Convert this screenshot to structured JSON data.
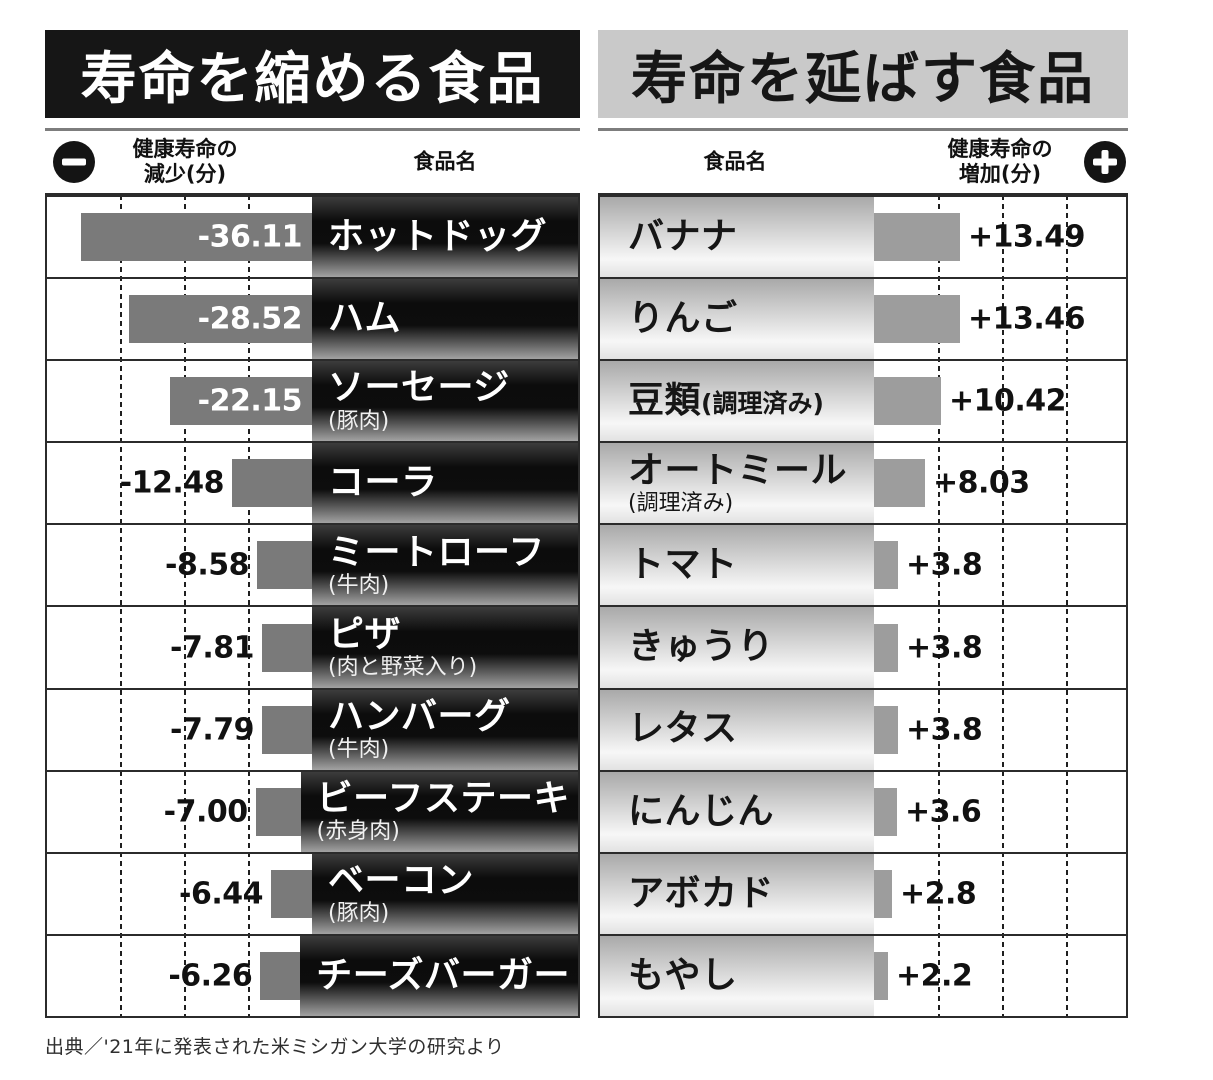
{
  "colors": {
    "left_title_bg": "#161616",
    "left_title_text": "#ffffff",
    "right_title_bg": "#c9c9c9",
    "right_title_text": "#161616",
    "left_bar": "#7a7a7a",
    "right_bar": "#9d9d9d",
    "grid_line": "#1f1f1f",
    "table_border": "#2b2b2b"
  },
  "left_chart": {
    "title": "寿命を縮める食品",
    "sign_icon": "minus-circle",
    "value_header_line1": "健康寿命の",
    "value_header_line2": "減少(分)",
    "name_header": "食品名",
    "rows": [
      {
        "name": "ホットドッグ",
        "sub": "",
        "sub_inline": false,
        "value": -36.11,
        "value_label": "-36.11"
      },
      {
        "name": "ハム",
        "sub": "",
        "sub_inline": false,
        "value": -28.52,
        "value_label": "-28.52"
      },
      {
        "name": "ソーセージ",
        "sub": "(豚肉)",
        "sub_inline": false,
        "value": -22.15,
        "value_label": "-22.15"
      },
      {
        "name": "コーラ",
        "sub": "",
        "sub_inline": false,
        "value": -12.48,
        "value_label": "-12.48"
      },
      {
        "name": "ミートローフ",
        "sub": "(牛肉)",
        "sub_inline": false,
        "value": -8.58,
        "value_label": "-8.58"
      },
      {
        "name": "ピザ",
        "sub": "(肉と野菜入り)",
        "sub_inline": false,
        "value": -7.81,
        "value_label": "-7.81"
      },
      {
        "name": "ハンバーグ",
        "sub": "(牛肉)",
        "sub_inline": false,
        "value": -7.79,
        "value_label": "-7.79"
      },
      {
        "name": "ビーフステーキ",
        "sub": "(赤身肉)",
        "sub_inline": false,
        "value": -7.0,
        "value_label": "-7.00"
      },
      {
        "name": "ベーコン",
        "sub": "(豚肉)",
        "sub_inline": false,
        "value": -6.44,
        "value_label": "-6.44"
      },
      {
        "name": "チーズバーガー",
        "sub": "",
        "sub_inline": false,
        "value": -6.26,
        "value_label": "-6.26"
      }
    ]
  },
  "right_chart": {
    "title": "寿命を延ばす食品",
    "sign_icon": "plus-circle",
    "value_header_line1": "健康寿命の",
    "value_header_line2": "増加(分)",
    "name_header": "食品名",
    "rows": [
      {
        "name": "バナナ",
        "sub": "",
        "sub_inline": false,
        "value": 13.49,
        "value_label": "+13.49"
      },
      {
        "name": "りんご",
        "sub": "",
        "sub_inline": false,
        "value": 13.46,
        "value_label": "+13.46"
      },
      {
        "name": "豆類",
        "sub": "(調理済み)",
        "sub_inline": true,
        "value": 10.42,
        "value_label": "+10.42"
      },
      {
        "name": "オートミール",
        "sub": "(調理済み)",
        "sub_inline": false,
        "value": 8.03,
        "value_label": "+8.03"
      },
      {
        "name": "トマト",
        "sub": "",
        "sub_inline": false,
        "value": 3.8,
        "value_label": "+3.8"
      },
      {
        "name": "きゅうり",
        "sub": "",
        "sub_inline": false,
        "value": 3.8,
        "value_label": "+3.8"
      },
      {
        "name": "レタス",
        "sub": "",
        "sub_inline": false,
        "value": 3.8,
        "value_label": "+3.8"
      },
      {
        "name": "にんじん",
        "sub": "",
        "sub_inline": false,
        "value": 3.6,
        "value_label": "+3.6"
      },
      {
        "name": "アボカド",
        "sub": "",
        "sub_inline": false,
        "value": 2.8,
        "value_label": "+2.8"
      },
      {
        "name": "もやし",
        "sub": "",
        "sub_inline": false,
        "value": 2.2,
        "value_label": "+2.2"
      }
    ]
  },
  "footer": {
    "source": "出典／'21年に発表された米ミシガン大学の研究より"
  },
  "chart_data": [
    {
      "type": "bar",
      "orientation": "horizontal",
      "title": "寿命を縮める食品",
      "xlabel": "健康寿命の減少(分)",
      "categories": [
        "ホットドッグ",
        "ハム",
        "ソーセージ(豚肉)",
        "コーラ",
        "ミートローフ(牛肉)",
        "ピザ(肉と野菜入り)",
        "ハンバーグ(牛肉)",
        "ビーフステーキ(赤身肉)",
        "ベーコン(豚肉)",
        "チーズバーガー"
      ],
      "values": [
        -36.11,
        -28.52,
        -22.15,
        -12.48,
        -8.58,
        -7.81,
        -7.79,
        -7.0,
        -6.44,
        -6.26
      ],
      "value_labels": [
        "-36.11",
        "-28.52",
        "-22.15",
        "-12.48",
        "-8.58",
        "-7.81",
        "-7.79",
        "-7.00",
        "-6.44",
        "-6.26"
      ],
      "xlim": [
        -40,
        0
      ],
      "gridlines": [
        -10,
        -20,
        -30
      ],
      "grid_style": "dashed",
      "bars_grow": "left"
    },
    {
      "type": "bar",
      "orientation": "horizontal",
      "title": "寿命を延ばす食品",
      "xlabel": "健康寿命の増加(分)",
      "categories": [
        "バナナ",
        "りんご",
        "豆類(調理済み)",
        "オートミール(調理済み)",
        "トマト",
        "きゅうり",
        "レタス",
        "にんじん",
        "アボカド",
        "もやし"
      ],
      "values": [
        13.49,
        13.46,
        10.42,
        8.03,
        3.8,
        3.8,
        3.8,
        3.6,
        2.8,
        2.2
      ],
      "value_labels": [
        "+13.49",
        "+13.46",
        "+10.42",
        "+8.03",
        "+3.8",
        "+3.8",
        "+3.8",
        "+3.6",
        "+2.8",
        "+2.2"
      ],
      "xlim": [
        0,
        40
      ],
      "gridlines": [
        10,
        20,
        30
      ],
      "grid_style": "dashed",
      "bars_grow": "right"
    }
  ]
}
